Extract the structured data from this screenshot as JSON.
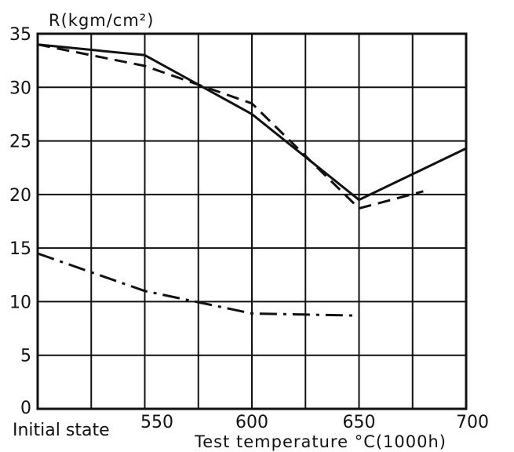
{
  "chart_data": {
    "type": "line",
    "ylabel": "R(kgm/cm²)",
    "xlabel": "Test temperature °C(1000h)",
    "x_ticks": [
      {
        "label": "Initial state",
        "pos": 0
      },
      {
        "label": "550",
        "pos": 2
      },
      {
        "label": "600",
        "pos": 4
      },
      {
        "label": "650",
        "pos": 6
      },
      {
        "label": "700",
        "pos": 8
      }
    ],
    "x_grid_positions": [
      0,
      1,
      2,
      3,
      4,
      5,
      6,
      7,
      8
    ],
    "xlim": [
      0,
      8
    ],
    "ylim": [
      0,
      35
    ],
    "y_ticks": [
      "0",
      "5",
      "10",
      "15",
      "20",
      "25",
      "30",
      "35"
    ],
    "y_tick_values": [
      0,
      5,
      10,
      15,
      20,
      25,
      30,
      35
    ],
    "grid": true,
    "series": [
      {
        "style": "solid",
        "points": [
          [
            0,
            34
          ],
          [
            2,
            33
          ],
          [
            4,
            27.5
          ],
          [
            6,
            19.5
          ],
          [
            8,
            24.3
          ]
        ]
      },
      {
        "style": "dashed",
        "points": [
          [
            0,
            34
          ],
          [
            2,
            32
          ],
          [
            4,
            28.5
          ],
          [
            6,
            18.7
          ],
          [
            7.2,
            20.3
          ]
        ]
      },
      {
        "style": "dashdot",
        "points": [
          [
            0,
            14.5
          ],
          [
            2,
            11
          ],
          [
            4,
            8.9
          ],
          [
            6,
            8.7
          ]
        ]
      }
    ]
  }
}
